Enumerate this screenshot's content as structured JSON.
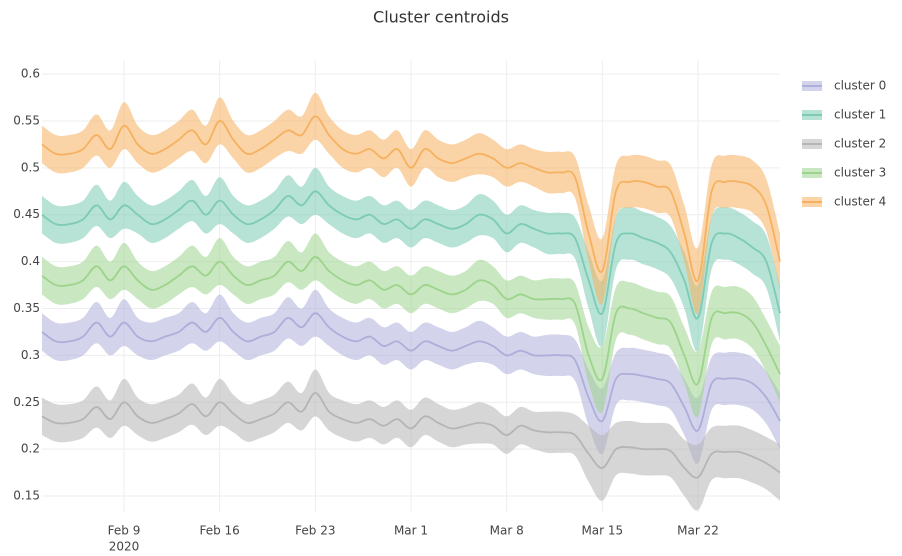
{
  "chart_data": {
    "type": "line",
    "title": "Cluster centroids",
    "x": [
      "2020-02-03",
      "2020-02-04",
      "2020-02-05",
      "2020-02-06",
      "2020-02-07",
      "2020-02-08",
      "2020-02-09",
      "2020-02-10",
      "2020-02-11",
      "2020-02-12",
      "2020-02-13",
      "2020-02-14",
      "2020-02-15",
      "2020-02-16",
      "2020-02-17",
      "2020-02-18",
      "2020-02-19",
      "2020-02-20",
      "2020-02-21",
      "2020-02-22",
      "2020-02-23",
      "2020-02-24",
      "2020-02-25",
      "2020-02-26",
      "2020-02-27",
      "2020-02-28",
      "2020-02-29",
      "2020-03-01",
      "2020-03-02",
      "2020-03-03",
      "2020-03-04",
      "2020-03-05",
      "2020-03-06",
      "2020-03-07",
      "2020-03-08",
      "2020-03-09",
      "2020-03-10",
      "2020-03-11",
      "2020-03-12",
      "2020-03-13",
      "2020-03-14",
      "2020-03-15",
      "2020-03-16",
      "2020-03-17",
      "2020-03-18",
      "2020-03-19",
      "2020-03-20",
      "2020-03-21",
      "2020-03-22",
      "2020-03-23",
      "2020-03-24",
      "2020-03-25",
      "2020-03-26",
      "2020-03-27",
      "2020-03-28"
    ],
    "xlim": [
      "2020-02-03",
      "2020-03-28"
    ],
    "xticks": [
      {
        "value": "2020-02-09",
        "label": "Feb 9"
      },
      {
        "value": "2020-02-16",
        "label": "Feb 16"
      },
      {
        "value": "2020-02-23",
        "label": "Feb 23"
      },
      {
        "value": "2020-03-01",
        "label": "Mar 1"
      },
      {
        "value": "2020-03-08",
        "label": "Mar 8"
      },
      {
        "value": "2020-03-15",
        "label": "Mar 15"
      },
      {
        "value": "2020-03-22",
        "label": "Mar 22"
      }
    ],
    "x_year_label": "2020",
    "ylim": [
      0.133,
      0.615
    ],
    "yticks": [
      0.15,
      0.2,
      0.25,
      0.3,
      0.35,
      0.4,
      0.45,
      0.5,
      0.55,
      0.6
    ],
    "grid": true,
    "legend": "right",
    "series": [
      {
        "name": "cluster 0",
        "color": "#aeaedb",
        "values": [
          0.325,
          0.315,
          0.315,
          0.32,
          0.335,
          0.32,
          0.335,
          0.32,
          0.315,
          0.32,
          0.325,
          0.335,
          0.325,
          0.34,
          0.325,
          0.315,
          0.32,
          0.325,
          0.34,
          0.33,
          0.345,
          0.33,
          0.32,
          0.315,
          0.32,
          0.31,
          0.315,
          0.305,
          0.315,
          0.31,
          0.305,
          0.31,
          0.315,
          0.31,
          0.3,
          0.305,
          0.3,
          0.3,
          0.3,
          0.295,
          0.255,
          0.23,
          0.275,
          0.28,
          0.278,
          0.275,
          0.27,
          0.245,
          0.22,
          0.27,
          0.275,
          0.275,
          0.27,
          0.255,
          0.23
        ],
        "error": [
          0.02,
          0.02,
          0.02,
          0.02,
          0.022,
          0.02,
          0.025,
          0.02,
          0.02,
          0.02,
          0.02,
          0.022,
          0.02,
          0.025,
          0.02,
          0.02,
          0.02,
          0.02,
          0.022,
          0.02,
          0.025,
          0.02,
          0.02,
          0.02,
          0.02,
          0.02,
          0.02,
          0.02,
          0.02,
          0.02,
          0.02,
          0.02,
          0.022,
          0.02,
          0.02,
          0.02,
          0.02,
          0.022,
          0.022,
          0.022,
          0.03,
          0.035,
          0.028,
          0.028,
          0.028,
          0.028,
          0.028,
          0.03,
          0.035,
          0.028,
          0.028,
          0.028,
          0.028,
          0.028,
          0.03
        ]
      },
      {
        "name": "cluster 1",
        "color": "#7ccbb4",
        "values": [
          0.45,
          0.44,
          0.44,
          0.445,
          0.46,
          0.445,
          0.46,
          0.45,
          0.44,
          0.445,
          0.455,
          0.465,
          0.45,
          0.465,
          0.45,
          0.44,
          0.445,
          0.455,
          0.47,
          0.46,
          0.475,
          0.46,
          0.45,
          0.445,
          0.45,
          0.44,
          0.445,
          0.435,
          0.445,
          0.44,
          0.435,
          0.44,
          0.45,
          0.445,
          0.43,
          0.44,
          0.435,
          0.43,
          0.43,
          0.425,
          0.38,
          0.345,
          0.42,
          0.43,
          0.425,
          0.42,
          0.41,
          0.38,
          0.34,
          0.42,
          0.43,
          0.425,
          0.415,
          0.4,
          0.345
        ],
        "error": [
          0.02,
          0.02,
          0.02,
          0.02,
          0.022,
          0.02,
          0.025,
          0.02,
          0.02,
          0.02,
          0.02,
          0.022,
          0.02,
          0.025,
          0.02,
          0.02,
          0.02,
          0.02,
          0.022,
          0.02,
          0.025,
          0.02,
          0.02,
          0.02,
          0.02,
          0.02,
          0.02,
          0.02,
          0.02,
          0.02,
          0.02,
          0.02,
          0.022,
          0.02,
          0.02,
          0.02,
          0.02,
          0.022,
          0.022,
          0.022,
          0.03,
          0.035,
          0.028,
          0.028,
          0.028,
          0.028,
          0.028,
          0.03,
          0.035,
          0.028,
          0.028,
          0.028,
          0.028,
          0.028,
          0.03
        ]
      },
      {
        "name": "cluster 2",
        "color": "#b5b5b5",
        "values": [
          0.235,
          0.228,
          0.228,
          0.232,
          0.245,
          0.232,
          0.25,
          0.235,
          0.228,
          0.232,
          0.238,
          0.248,
          0.235,
          0.25,
          0.238,
          0.228,
          0.232,
          0.238,
          0.25,
          0.24,
          0.26,
          0.24,
          0.232,
          0.228,
          0.232,
          0.225,
          0.232,
          0.222,
          0.235,
          0.228,
          0.222,
          0.225,
          0.228,
          0.225,
          0.215,
          0.225,
          0.22,
          0.218,
          0.218,
          0.215,
          0.195,
          0.18,
          0.2,
          0.202,
          0.2,
          0.2,
          0.198,
          0.18,
          0.17,
          0.195,
          0.197,
          0.197,
          0.192,
          0.185,
          0.175
        ],
        "error": [
          0.02,
          0.02,
          0.02,
          0.02,
          0.022,
          0.02,
          0.025,
          0.02,
          0.02,
          0.02,
          0.02,
          0.022,
          0.02,
          0.025,
          0.02,
          0.02,
          0.02,
          0.02,
          0.022,
          0.02,
          0.025,
          0.02,
          0.02,
          0.02,
          0.02,
          0.02,
          0.02,
          0.02,
          0.02,
          0.02,
          0.02,
          0.02,
          0.022,
          0.02,
          0.02,
          0.02,
          0.02,
          0.022,
          0.022,
          0.022,
          0.03,
          0.035,
          0.028,
          0.028,
          0.028,
          0.028,
          0.028,
          0.03,
          0.035,
          0.028,
          0.028,
          0.028,
          0.028,
          0.028,
          0.03
        ]
      },
      {
        "name": "cluster 3",
        "color": "#9dd48c",
        "values": [
          0.385,
          0.375,
          0.375,
          0.38,
          0.395,
          0.38,
          0.395,
          0.38,
          0.37,
          0.375,
          0.385,
          0.395,
          0.385,
          0.4,
          0.385,
          0.375,
          0.38,
          0.385,
          0.4,
          0.39,
          0.405,
          0.39,
          0.38,
          0.375,
          0.38,
          0.37,
          0.375,
          0.365,
          0.375,
          0.37,
          0.365,
          0.37,
          0.38,
          0.375,
          0.36,
          0.365,
          0.36,
          0.36,
          0.36,
          0.355,
          0.3,
          0.275,
          0.345,
          0.35,
          0.345,
          0.34,
          0.335,
          0.3,
          0.27,
          0.34,
          0.345,
          0.345,
          0.335,
          0.31,
          0.28
        ],
        "error": [
          0.02,
          0.02,
          0.02,
          0.02,
          0.022,
          0.02,
          0.025,
          0.02,
          0.02,
          0.02,
          0.02,
          0.022,
          0.02,
          0.025,
          0.02,
          0.02,
          0.02,
          0.02,
          0.022,
          0.02,
          0.025,
          0.02,
          0.02,
          0.02,
          0.02,
          0.02,
          0.02,
          0.02,
          0.02,
          0.02,
          0.02,
          0.02,
          0.022,
          0.02,
          0.02,
          0.02,
          0.02,
          0.022,
          0.022,
          0.022,
          0.03,
          0.035,
          0.028,
          0.028,
          0.028,
          0.028,
          0.028,
          0.03,
          0.035,
          0.028,
          0.028,
          0.028,
          0.028,
          0.028,
          0.03
        ]
      },
      {
        "name": "cluster 4",
        "color": "#f6b15f",
        "values": [
          0.525,
          0.515,
          0.515,
          0.52,
          0.535,
          0.52,
          0.545,
          0.525,
          0.515,
          0.52,
          0.53,
          0.54,
          0.525,
          0.55,
          0.53,
          0.515,
          0.52,
          0.53,
          0.54,
          0.535,
          0.555,
          0.535,
          0.52,
          0.515,
          0.52,
          0.51,
          0.52,
          0.5,
          0.52,
          0.51,
          0.505,
          0.51,
          0.515,
          0.51,
          0.5,
          0.505,
          0.5,
          0.495,
          0.495,
          0.49,
          0.43,
          0.39,
          0.475,
          0.485,
          0.485,
          0.48,
          0.475,
          0.43,
          0.38,
          0.475,
          0.485,
          0.485,
          0.48,
          0.46,
          0.4
        ],
        "error": [
          0.02,
          0.02,
          0.02,
          0.02,
          0.022,
          0.02,
          0.025,
          0.02,
          0.02,
          0.02,
          0.02,
          0.022,
          0.02,
          0.025,
          0.02,
          0.02,
          0.02,
          0.02,
          0.022,
          0.02,
          0.025,
          0.02,
          0.02,
          0.02,
          0.02,
          0.02,
          0.02,
          0.02,
          0.02,
          0.02,
          0.02,
          0.02,
          0.022,
          0.02,
          0.02,
          0.02,
          0.02,
          0.022,
          0.022,
          0.022,
          0.03,
          0.035,
          0.028,
          0.028,
          0.028,
          0.028,
          0.028,
          0.03,
          0.035,
          0.028,
          0.028,
          0.028,
          0.028,
          0.028,
          0.03
        ]
      }
    ]
  }
}
